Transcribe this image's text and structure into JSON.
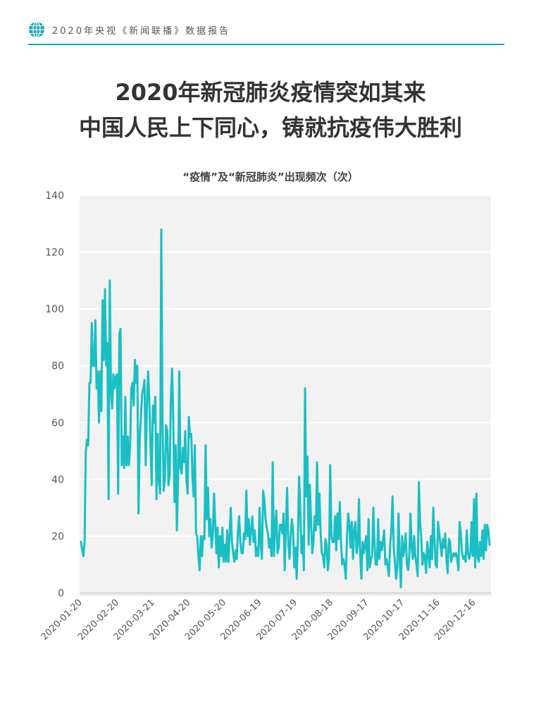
{
  "header": {
    "brand": "2020年央视《新闻联播》数据报告",
    "globe_icon": "globe-icon",
    "accent": "#17a9b8"
  },
  "headline": {
    "line1": "2020年新冠肺炎疫情突如其来",
    "line2": "中国人民上下同心，铸就抗疫伟大胜利"
  },
  "chart_data": {
    "type": "line",
    "title": "“疫情”及“新冠肺炎”出现频次（次）",
    "xlabel": "",
    "ylabel": "",
    "ylim": [
      0,
      140
    ],
    "yticks": [
      0,
      20,
      40,
      60,
      80,
      100,
      120,
      140
    ],
    "x_start": "2020-01-20",
    "x_end": "2020-12-31",
    "xtick_labels": [
      "2020-01-20",
      "2020-02-20",
      "2020-03-21",
      "2020-04-20",
      "2020-05-20",
      "2020-06-19",
      "2020-07-19",
      "2020-08-18",
      "2020-09-17",
      "2020-10-17",
      "2020-11-16",
      "2020-12-16"
    ],
    "grid": true,
    "background": "#f2f2f2",
    "line_color": "#1abfc4",
    "series": [
      {
        "name": "",
        "values": [
          18,
          15,
          13,
          18,
          50,
          54,
          52,
          74,
          74,
          95,
          80,
          80,
          96,
          72,
          78,
          60,
          78,
          64,
          103,
          82,
          107,
          80,
          88,
          33,
          110,
          72,
          65,
          77,
          72,
          76,
          77,
          35,
          91,
          93,
          45,
          55,
          44,
          69,
          45,
          55,
          45,
          52,
          72,
          74,
          66,
          82,
          74,
          80,
          28,
          54,
          62,
          70,
          72,
          75,
          45,
          66,
          78,
          68,
          52,
          38,
          66,
          60,
          69,
          33,
          56,
          40,
          35,
          128,
          60,
          36,
          40,
          59,
          57,
          38,
          42,
          68,
          79,
          62,
          32,
          52,
          22,
          40,
          78,
          44,
          42,
          51,
          46,
          57,
          40,
          35,
          62,
          55,
          56,
          41,
          34,
          52,
          21,
          20,
          13,
          8,
          20,
          13,
          20,
          19,
          52,
          26,
          37,
          20,
          26,
          16,
          20,
          35,
          25,
          14,
          23,
          9,
          20,
          13,
          23,
          11,
          17,
          11,
          22,
          11,
          20,
          30,
          18,
          14,
          11,
          15,
          12,
          22,
          27,
          18,
          14,
          14,
          21,
          19,
          36,
          20,
          26,
          17,
          22,
          27,
          18,
          22,
          13,
          16,
          13,
          30,
          17,
          12,
          36,
          33,
          26,
          23,
          21,
          16,
          19,
          13,
          46,
          13,
          23,
          29,
          14,
          16,
          24,
          24,
          21,
          28,
          8,
          23,
          37,
          18,
          12,
          20,
          26,
          22,
          9,
          16,
          5,
          19,
          41,
          30,
          14,
          20,
          8,
          72,
          34,
          48,
          17,
          38,
          25,
          14,
          18,
          27,
          22,
          46,
          24,
          35,
          21,
          14,
          13,
          9,
          19,
          17,
          8,
          12,
          45,
          20,
          18,
          18,
          27,
          15,
          28,
          19,
          32,
          18,
          10,
          12,
          10,
          5,
          20,
          28,
          24,
          16,
          25,
          12,
          22,
          25,
          14,
          17,
          33,
          14,
          5,
          18,
          14,
          17,
          20,
          8,
          26,
          9,
          12,
          13,
          30,
          17,
          10,
          10,
          26,
          12,
          18,
          15,
          18,
          22,
          10,
          12,
          9,
          6,
          17,
          22,
          34,
          16,
          11,
          5,
          9,
          28,
          12,
          2,
          20,
          13,
          16,
          21,
          10,
          8,
          13,
          28,
          16,
          12,
          20,
          13,
          10,
          6,
          39,
          25,
          19,
          10,
          14,
          13,
          7,
          18,
          14,
          9,
          20,
          12,
          30,
          19,
          10,
          9,
          25,
          21,
          17,
          13,
          19,
          16,
          21,
          12,
          7,
          19,
          18,
          11,
          13,
          14,
          13,
          14,
          12,
          8,
          25,
          21,
          14,
          12,
          13,
          11,
          22,
          14,
          12,
          14,
          25,
          13,
          33,
          9,
          35,
          13,
          11,
          18,
          13,
          22,
          12,
          24,
          15,
          24,
          22,
          17
        ]
      }
    ]
  }
}
